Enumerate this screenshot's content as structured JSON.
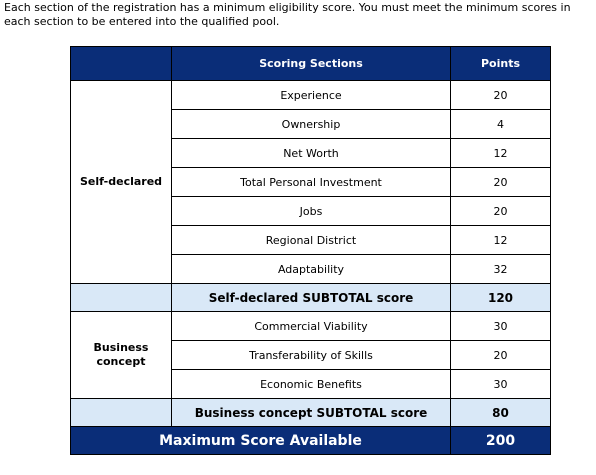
{
  "intro_text": "Each section of the registration has a minimum eligibility score. You must meet the minimum scores in each section to be entered into the qualified pool.",
  "header": {
    "section_col": "Scoring Sections",
    "points_col": "Points"
  },
  "self_declared": {
    "label": "Self-declared",
    "items": [
      {
        "name": "Experience",
        "points": "20"
      },
      {
        "name": "Ownership",
        "points": "4"
      },
      {
        "name": "Net Worth",
        "points": "12"
      },
      {
        "name": "Total Personal Investment",
        "points": "20"
      },
      {
        "name": "Jobs",
        "points": "20"
      },
      {
        "name": "Regional District",
        "points": "12"
      },
      {
        "name": "Adaptability",
        "points": "32"
      }
    ],
    "subtotal_label": "Self-declared SUBTOTAL score",
    "subtotal_points": "120"
  },
  "business_concept": {
    "label_line1": "Business",
    "label_line2": "concept",
    "items": [
      {
        "name": "Commercial Viability",
        "points": "30"
      },
      {
        "name": "Transferability of Skills",
        "points": "20"
      },
      {
        "name": "Economic Benefits",
        "points": "30"
      }
    ],
    "subtotal_label": "Business concept SUBTOTAL score",
    "subtotal_points": "80"
  },
  "maximum": {
    "label": "Maximum Score Available",
    "points": "200"
  },
  "colors": {
    "header_bg": "#0a2d78",
    "subtotal_bg": "#d9e8f7"
  }
}
